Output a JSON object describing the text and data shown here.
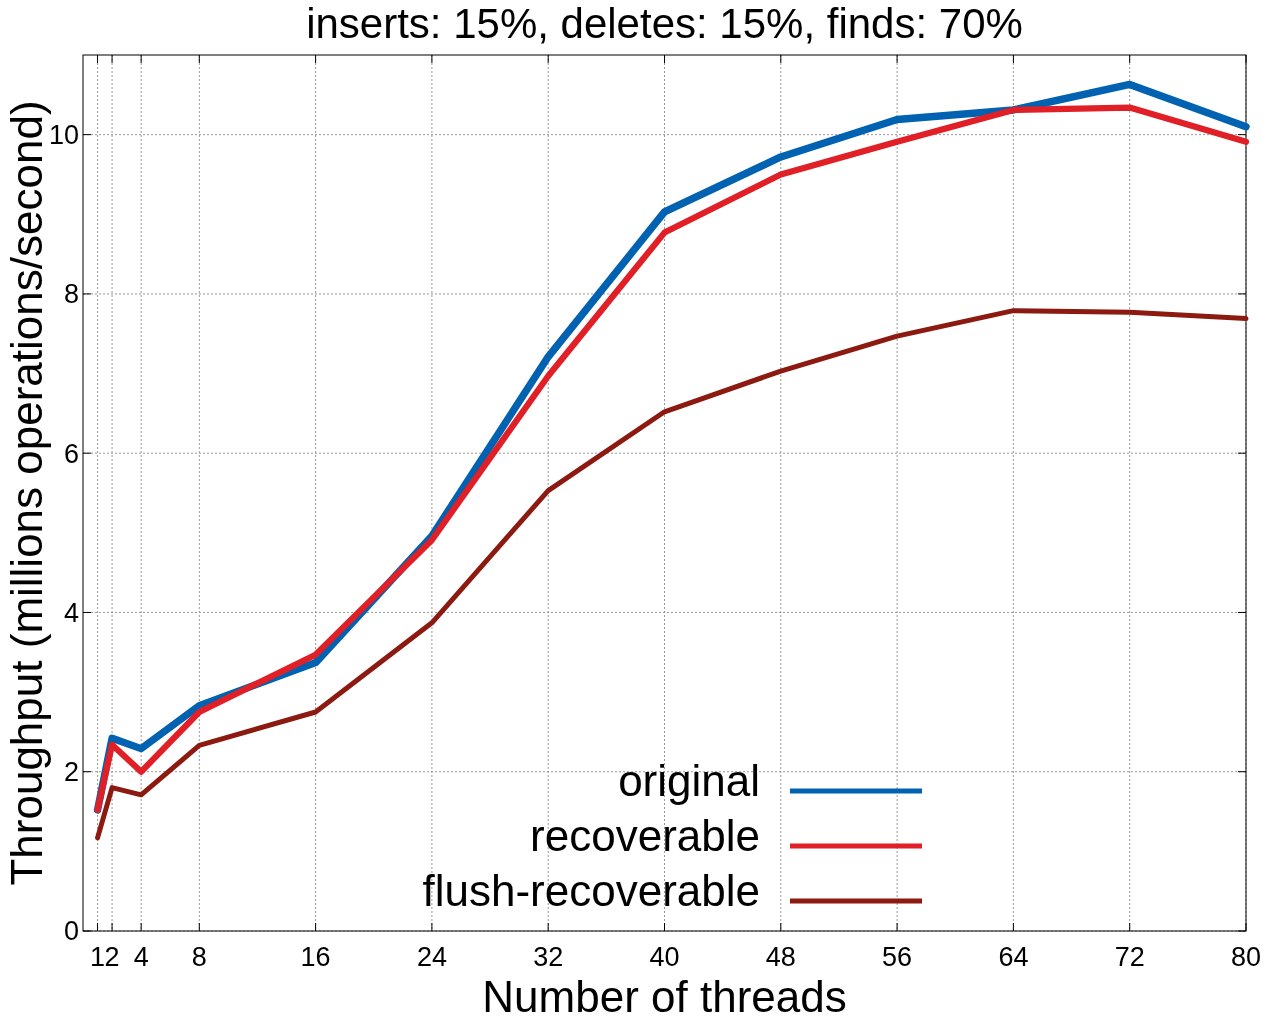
{
  "chart_data": {
    "type": "line",
    "title": "inserts: 15%, deletes: 15%, finds: 70%",
    "xlabel": "Number of threads",
    "ylabel": "Throughput (millions operations/second)",
    "x": [
      1,
      2,
      4,
      8,
      16,
      24,
      32,
      40,
      48,
      56,
      64,
      72,
      80
    ],
    "series": [
      {
        "name": "original",
        "color": "#0062b0",
        "values": [
          1.52,
          2.42,
          2.29,
          2.83,
          3.37,
          4.96,
          7.21,
          9.03,
          9.72,
          10.19,
          10.31,
          10.63,
          10.1
        ]
      },
      {
        "name": "recoverable",
        "color": "#e01f27",
        "values": [
          1.52,
          2.34,
          2.0,
          2.75,
          3.47,
          4.91,
          6.97,
          8.77,
          9.5,
          9.91,
          10.31,
          10.34,
          9.91
        ]
      },
      {
        "name": "flush-recoverable",
        "color": "#8c1a10",
        "values": [
          1.17,
          1.8,
          1.71,
          2.33,
          2.75,
          3.87,
          5.53,
          6.52,
          7.03,
          7.47,
          7.79,
          7.77,
          7.69
        ]
      }
    ],
    "xlim": [
      0,
      80
    ],
    "xticks": [
      1,
      2,
      4,
      8,
      16,
      24,
      32,
      40,
      48,
      56,
      64,
      72,
      80
    ],
    "ylim": [
      0,
      11
    ],
    "yticks": [
      0,
      2,
      4,
      6,
      8,
      10
    ],
    "grid": true,
    "legend": "bottom",
    "marker": "none",
    "line_style": "solid"
  }
}
